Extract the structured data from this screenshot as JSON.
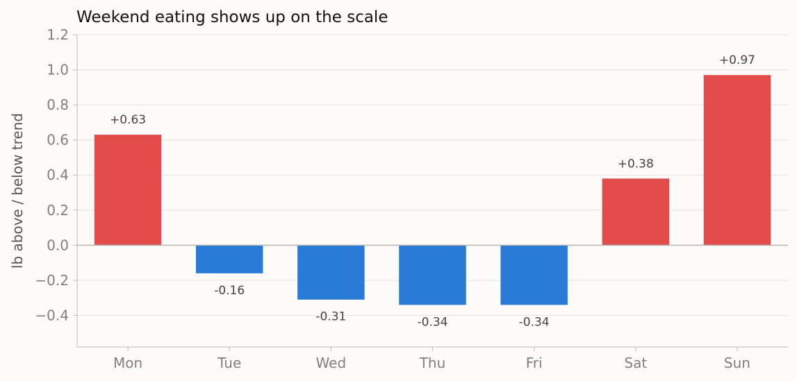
{
  "chart_data": {
    "type": "bar",
    "title": "Weekend eating shows up on the scale",
    "xlabel": "",
    "ylabel": "lb above / below trend",
    "categories": [
      "Mon",
      "Tue",
      "Wed",
      "Thu",
      "Fri",
      "Sat",
      "Sun"
    ],
    "values": [
      0.63,
      -0.16,
      -0.31,
      -0.34,
      -0.34,
      0.38,
      0.97
    ],
    "value_labels": [
      "+0.63",
      "-0.16",
      "-0.31",
      "-0.34",
      "-0.34",
      "+0.38",
      "+0.97"
    ],
    "ylim": [
      -0.58,
      1.2
    ],
    "yticks": [
      -0.4,
      -0.2,
      0.0,
      0.2,
      0.4,
      0.6,
      0.8,
      1.0,
      1.2
    ],
    "ytick_labels": [
      "−0.4",
      "−0.2",
      "0.0",
      "0.2",
      "0.4",
      "0.6",
      "0.8",
      "1.0",
      "1.2"
    ],
    "grid": "horizontal",
    "colors": {
      "positive": "#e34a4a",
      "negative": "#2979d6",
      "background": "#fcfbf9"
    }
  }
}
